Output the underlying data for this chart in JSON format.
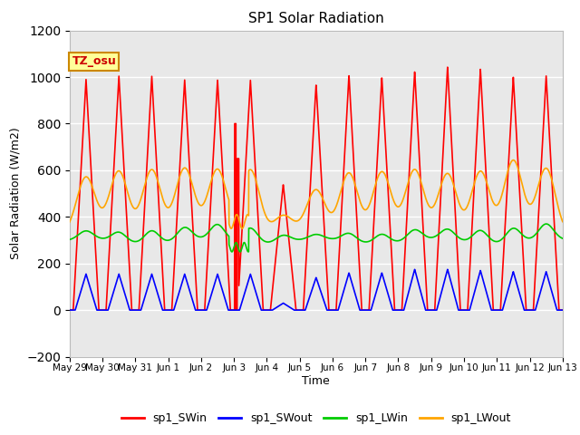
{
  "title": "SP1 Solar Radiation",
  "xlabel": "Time",
  "ylabel": "Solar Radiation (W/m2)",
  "ylim": [
    -200,
    1200
  ],
  "yticks": [
    -200,
    0,
    200,
    400,
    600,
    800,
    1000,
    1200
  ],
  "num_days": 15,
  "xtick_labels": [
    "May 29",
    "May 30",
    "May 31",
    "Jun 1",
    "Jun 2",
    "Jun 3",
    "Jun 4",
    "Jun 5",
    "Jun 6",
    "Jun 7",
    "Jun 8",
    "Jun 9",
    "Jun 10",
    "Jun 11",
    "Jun 12",
    "Jun 13"
  ],
  "series": {
    "sp1_SWin": {
      "color": "#ff0000",
      "lw": 1.2
    },
    "sp1_SWout": {
      "color": "#0000ff",
      "lw": 1.2
    },
    "sp1_LWin": {
      "color": "#00cc00",
      "lw": 1.2
    },
    "sp1_LWout": {
      "color": "#ffa500",
      "lw": 1.2
    }
  },
  "annotation_text": "TZ_osu",
  "annotation_color": "#cc0000",
  "annotation_bg": "#ffff99",
  "annotation_border": "#cc8800",
  "plot_bg": "#e8e8e8",
  "grid_color": "#ffffff",
  "fig_bg": "#ffffff",
  "SWin_peaks": [
    990,
    1005,
    1005,
    990,
    990,
    990,
    540,
    970,
    1010,
    1000,
    1025,
    1045,
    1035,
    1000,
    1005
  ],
  "SWout_peaks": [
    155,
    155,
    155,
    155,
    155,
    155,
    30,
    140,
    160,
    160,
    175,
    175,
    170,
    165,
    165
  ],
  "LWout_peaks": [
    565,
    595,
    610,
    605,
    600,
    610,
    405,
    510,
    595,
    595,
    595,
    590,
    600,
    635,
    610
  ],
  "LWout_base": 330,
  "LWin_base": 295,
  "LWin_peaks": [
    35,
    40,
    55,
    55,
    65,
    65,
    30,
    20,
    35,
    40,
    45,
    45,
    55,
    60,
    65
  ]
}
